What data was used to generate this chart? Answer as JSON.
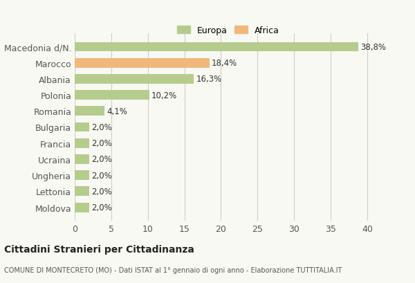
{
  "categories": [
    "Moldova",
    "Lettonia",
    "Ungheria",
    "Ucraina",
    "Francia",
    "Bulgaria",
    "Romania",
    "Polonia",
    "Albania",
    "Marocco",
    "Macedonia d/N."
  ],
  "values": [
    2.0,
    2.0,
    2.0,
    2.0,
    2.0,
    2.0,
    4.1,
    10.2,
    16.3,
    18.4,
    38.8
  ],
  "labels": [
    "2,0%",
    "2,0%",
    "2,0%",
    "2,0%",
    "2,0%",
    "2,0%",
    "4,1%",
    "10,2%",
    "16,3%",
    "18,4%",
    "38,8%"
  ],
  "colors": [
    "#b5cc8e",
    "#b5cc8e",
    "#b5cc8e",
    "#b5cc8e",
    "#b5cc8e",
    "#b5cc8e",
    "#b5cc8e",
    "#b5cc8e",
    "#b5cc8e",
    "#f0b87a",
    "#b5cc8e"
  ],
  "europa_color": "#b5cc8e",
  "africa_color": "#f0b87a",
  "xlim": [
    0,
    42
  ],
  "xticks": [
    0,
    5,
    10,
    15,
    20,
    25,
    30,
    35,
    40
  ],
  "title": "Cittadini Stranieri per Cittadinanza",
  "subtitle": "COMUNE DI MONTECRETO (MO) - Dati ISTAT al 1° gennaio di ogni anno - Elaborazione TUTTITALIA.IT",
  "bg_color": "#f9f9f3",
  "grid_color": "#cccccc"
}
